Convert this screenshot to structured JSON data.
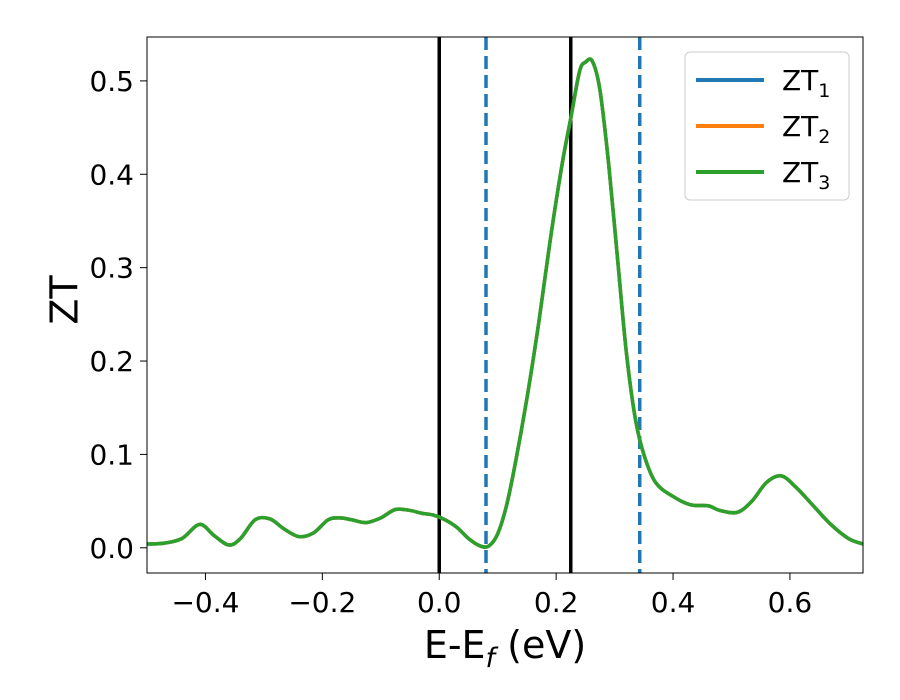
{
  "chart_data": {
    "type": "line",
    "xlabel": "E-E",
    "xlabel_sub": "f",
    "xlabel_unit": " (eV)",
    "ylabel": "ZT",
    "xlim": [
      -0.5,
      0.725
    ],
    "ylim": [
      -0.027,
      0.547
    ],
    "xticks": [
      -0.4,
      -0.2,
      0.0,
      0.2,
      0.4,
      0.6
    ],
    "xtick_labels": [
      "−0.4",
      "−0.2",
      "0.0",
      "0.2",
      "0.4",
      "0.6"
    ],
    "yticks": [
      0.0,
      0.1,
      0.2,
      0.3,
      0.4,
      0.5
    ],
    "ytick_labels": [
      "0.0",
      "0.1",
      "0.2",
      "0.3",
      "0.4",
      "0.5"
    ],
    "grid": false,
    "legend_position": "top-right",
    "vlines": [
      {
        "x": 0.0,
        "style": "solid",
        "color": "#000000"
      },
      {
        "x": 0.225,
        "style": "solid",
        "color": "#000000"
      },
      {
        "x": 0.08,
        "style": "dashed",
        "color": "#1f77b4"
      },
      {
        "x": 0.343,
        "style": "dashed",
        "color": "#1f77b4"
      }
    ],
    "series": [
      {
        "name": "ZT",
        "sub": "1",
        "color": "#1f77b4"
      },
      {
        "name": "ZT",
        "sub": "2",
        "color": "#ff7f0e"
      },
      {
        "name": "ZT",
        "sub": "3",
        "color": "#2ca02c"
      }
    ],
    "x": [
      -0.5,
      -0.47,
      -0.44,
      -0.41,
      -0.385,
      -0.36,
      -0.34,
      -0.315,
      -0.29,
      -0.265,
      -0.24,
      -0.215,
      -0.19,
      -0.17,
      -0.15,
      -0.125,
      -0.1,
      -0.075,
      -0.05,
      -0.03,
      -0.01,
      0.01,
      0.03,
      0.05,
      0.07,
      0.085,
      0.1,
      0.115,
      0.13,
      0.15,
      0.17,
      0.19,
      0.21,
      0.225,
      0.24,
      0.25,
      0.262,
      0.275,
      0.29,
      0.305,
      0.32,
      0.335,
      0.35,
      0.37,
      0.4,
      0.43,
      0.46,
      0.48,
      0.51,
      0.535,
      0.56,
      0.585,
      0.61,
      0.64,
      0.67,
      0.7,
      0.725
    ],
    "values": [
      0.004,
      0.005,
      0.01,
      0.025,
      0.013,
      0.003,
      0.01,
      0.03,
      0.031,
      0.02,
      0.012,
      0.016,
      0.03,
      0.032,
      0.03,
      0.027,
      0.032,
      0.041,
      0.04,
      0.037,
      0.035,
      0.03,
      0.022,
      0.01,
      0.002,
      0.002,
      0.015,
      0.045,
      0.09,
      0.16,
      0.24,
      0.33,
      0.41,
      0.46,
      0.51,
      0.52,
      0.521,
      0.49,
      0.41,
      0.31,
      0.21,
      0.14,
      0.1,
      0.07,
      0.055,
      0.046,
      0.045,
      0.04,
      0.038,
      0.05,
      0.07,
      0.077,
      0.065,
      0.045,
      0.025,
      0.01,
      0.004
    ]
  }
}
